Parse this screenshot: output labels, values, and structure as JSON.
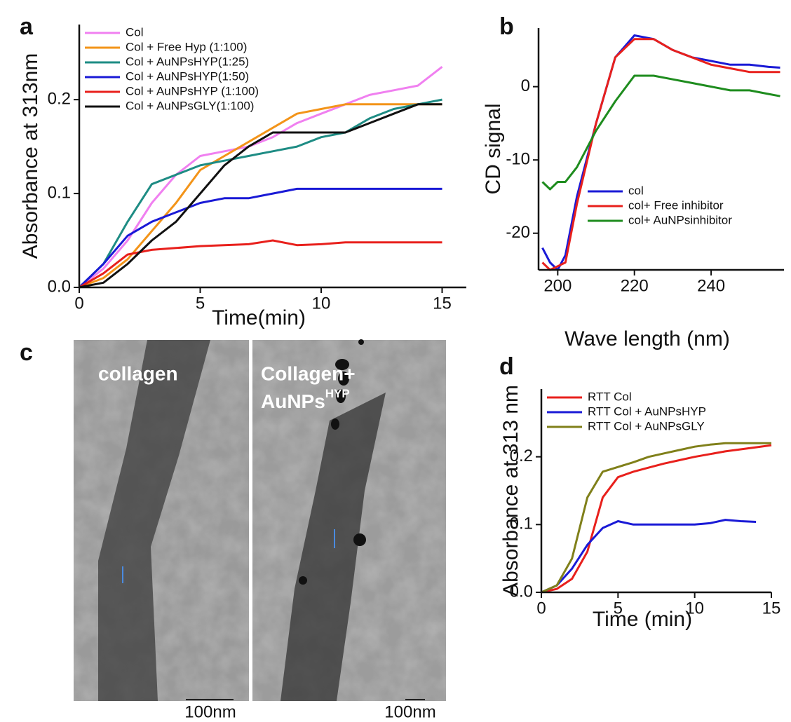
{
  "chart_data": [
    {
      "type": "line",
      "panel": "a",
      "xlabel": "Time(min)",
      "ylabel": "Absorbance at 313nm",
      "x": [
        0,
        1,
        2,
        3,
        4,
        5,
        6,
        7,
        8,
        9,
        10,
        11,
        12,
        13,
        14,
        15
      ],
      "xlim": [
        0,
        16
      ],
      "ylim": [
        0,
        0.28
      ],
      "xticks": [
        0,
        5,
        10,
        15
      ],
      "yticks": [
        {
          "value": 0,
          "label": "0.0"
        },
        0.1,
        0.2
      ],
      "legend": "upper left",
      "series": [
        {
          "name": "Col",
          "color": "#f080f0",
          "values": [
            0,
            0.02,
            0.05,
            0.09,
            0.12,
            0.14,
            0.145,
            0.15,
            0.16,
            0.175,
            0.185,
            0.195,
            0.205,
            0.21,
            0.215,
            0.235
          ]
        },
        {
          "name": "Col + Free Hyp (1:100)",
          "color": "#f39419",
          "values": [
            0,
            0.01,
            0.03,
            0.06,
            0.09,
            0.125,
            0.14,
            0.155,
            0.17,
            0.185,
            0.19,
            0.195,
            0.195,
            0.195,
            0.195,
            0.195
          ]
        },
        {
          "name": "Col + AuNPsHYP(1:25)",
          "color": "#1e8c84",
          "values": [
            0,
            0.025,
            0.07,
            0.11,
            0.12,
            0.13,
            0.135,
            0.14,
            0.145,
            0.15,
            0.16,
            0.165,
            0.18,
            0.19,
            0.195,
            0.2
          ]
        },
        {
          "name": "Col + AuNPsHYP(1:50)",
          "color": "#1a1ad6",
          "values": [
            0,
            0.025,
            0.055,
            0.07,
            0.08,
            0.09,
            0.095,
            0.095,
            0.1,
            0.105,
            0.105,
            0.105,
            0.105,
            0.105,
            0.105,
            0.105
          ]
        },
        {
          "name": "Col + AuNPsHYP (1:100)",
          "color": "#e8201c",
          "values": [
            0,
            0.015,
            0.035,
            0.04,
            0.042,
            0.044,
            0.045,
            0.046,
            0.05,
            0.045,
            0.046,
            0.048,
            0.048,
            0.048,
            0.048,
            0.048
          ]
        },
        {
          "name": "Col + AuNPsGLY(1:100)",
          "color": "#111111",
          "values": [
            0,
            0.005,
            0.025,
            0.05,
            0.07,
            0.1,
            0.13,
            0.15,
            0.165,
            0.165,
            0.165,
            0.165,
            0.175,
            0.185,
            0.195,
            0.195
          ]
        }
      ]
    },
    {
      "type": "line",
      "panel": "b",
      "xlabel": "Wave length (nm)",
      "ylabel": "CD signal",
      "x": [
        196,
        198,
        200,
        202,
        205,
        210,
        215,
        220,
        225,
        230,
        235,
        240,
        245,
        250,
        255,
        258
      ],
      "xlim": [
        195,
        259
      ],
      "ylim": [
        -25,
        8
      ],
      "xticks": [
        200,
        220,
        240
      ],
      "yticks": [
        0,
        -10,
        -20
      ],
      "legend": "lower right",
      "series": [
        {
          "name": "col",
          "color": "#1a1ad6",
          "values": [
            -22,
            -24,
            -25,
            -23,
            -15,
            -5,
            4,
            7,
            6.5,
            5,
            4,
            3.5,
            3,
            3,
            2.7,
            2.6
          ]
        },
        {
          "name": "col+ Free inhibitor",
          "color": "#e8201c",
          "values": [
            -24,
            -25,
            -24.5,
            -24,
            -16,
            -5,
            4,
            6.5,
            6.5,
            5,
            4,
            3,
            2.5,
            2,
            2,
            2
          ]
        },
        {
          "name": "col+ AuNPsinhibitor",
          "color": "#1e8c1e",
          "values": [
            -13,
            -14,
            -13,
            -13,
            -11,
            -6,
            -2,
            1.5,
            1.5,
            1,
            0.5,
            0,
            -0.5,
            -0.5,
            -1,
            -1.3
          ]
        }
      ]
    },
    {
      "type": "line",
      "panel": "d",
      "xlabel": "Time (min)",
      "ylabel": "Absorbance at 313 nm",
      "x": [
        0,
        1,
        2,
        3,
        4,
        5,
        6,
        7,
        8,
        9,
        10,
        11,
        12,
        13,
        14,
        15
      ],
      "xlim": [
        0,
        15
      ],
      "ylim": [
        0,
        0.3
      ],
      "xticks": [
        0,
        5,
        10,
        15
      ],
      "yticks": [
        {
          "value": 0,
          "label": "0.0"
        },
        0.1,
        0.2
      ],
      "legend": "upper left",
      "series": [
        {
          "name": "RTT Col",
          "color": "#e8201c",
          "values": [
            0,
            0.005,
            0.02,
            0.06,
            0.14,
            0.17,
            0.178,
            0.184,
            0.19,
            0.195,
            0.2,
            0.204,
            0.208,
            0.211,
            0.214,
            0.217
          ]
        },
        {
          "name": "RTT Col + AuNPsHYP",
          "color": "#1a1ad6",
          "values": [
            0,
            0.01,
            0.035,
            0.07,
            0.095,
            0.105,
            0.1,
            0.1,
            0.1,
            0.1,
            0.1,
            0.102,
            0.107,
            0.105,
            0.104,
            null
          ]
        },
        {
          "name": "RTT Col + AuNPsGLY",
          "color": "#80801a",
          "values": [
            0,
            0.01,
            0.05,
            0.14,
            0.178,
            0.185,
            0.192,
            0.2,
            0.205,
            0.21,
            0.215,
            0.218,
            0.22,
            0.22,
            0.22,
            0.22
          ]
        }
      ]
    }
  ],
  "micrographs": {
    "panel": "c",
    "images": [
      {
        "caption": "collagen",
        "scale_bar": "100nm"
      },
      {
        "caption_lines": [
          "Collagen+",
          "AuNPs"
        ],
        "caption_sup": "HYP",
        "scale_bar": "100nm"
      }
    ]
  }
}
